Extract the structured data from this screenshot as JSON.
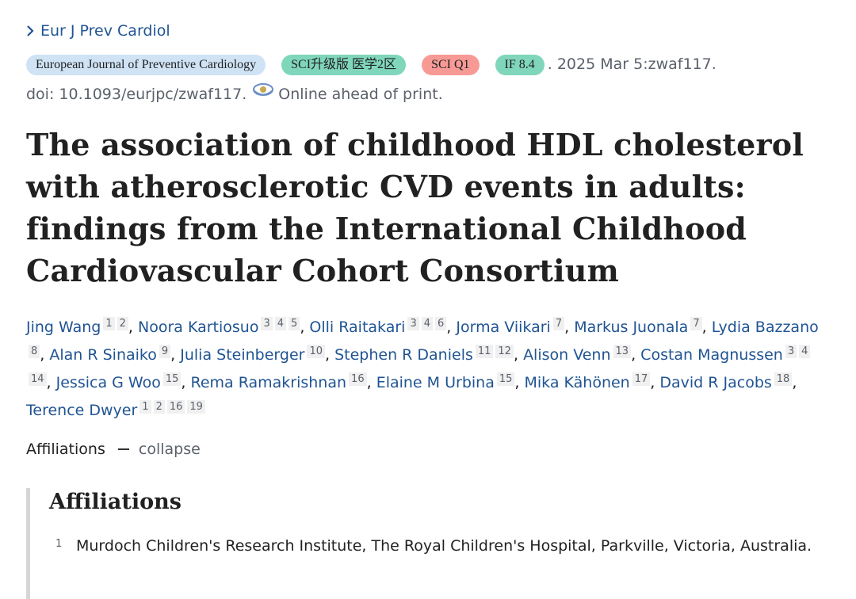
{
  "journal_link": "Eur J Prev Cardiol",
  "citation": {
    "journal_badge": "European Journal of Preventive Cardiology",
    "sci_badge": "SCI升级版 医学2区",
    "q1_badge": "SCI Q1",
    "if_badge": "IF 8.4",
    "date_text": ". 2025 Mar 5:zwaf117.",
    "doi_text": "doi: 10.1093/eurjpc/zwaf117.",
    "epub_icon": "online-ahead-icon",
    "epub_text": "Online ahead of print."
  },
  "title": "The association of childhood HDL cholesterol with atherosclerotic CVD events in adults: findings from the International Childhood Cardiovascular Cohort Consortium",
  "authors": [
    {
      "name": "Jing Wang",
      "affs": [
        "1",
        "2"
      ]
    },
    {
      "name": "Noora Kartiosuo",
      "affs": [
        "3",
        "4",
        "5"
      ]
    },
    {
      "name": "Olli Raitakari",
      "affs": [
        "3",
        "4",
        "6"
      ]
    },
    {
      "name": "Jorma Viikari",
      "affs": [
        "7"
      ]
    },
    {
      "name": "Markus Juonala",
      "affs": [
        "7"
      ]
    },
    {
      "name": "Lydia Bazzano",
      "affs": [
        "8"
      ]
    },
    {
      "name": "Alan R Sinaiko",
      "affs": [
        "9"
      ]
    },
    {
      "name": "Julia Steinberger",
      "affs": [
        "10"
      ]
    },
    {
      "name": "Stephen R Daniels",
      "affs": [
        "11",
        "12"
      ]
    },
    {
      "name": "Alison Venn",
      "affs": [
        "13"
      ]
    },
    {
      "name": "Costan Magnussen",
      "affs": [
        "3",
        "4",
        "14"
      ]
    },
    {
      "name": "Jessica G Woo",
      "affs": [
        "15"
      ]
    },
    {
      "name": "Rema Ramakrishnan",
      "affs": [
        "16"
      ]
    },
    {
      "name": "Elaine M Urbina",
      "affs": [
        "15"
      ]
    },
    {
      "name": "Mika Kähönen",
      "affs": [
        "17"
      ]
    },
    {
      "name": "David R Jacobs",
      "affs": [
        "18"
      ]
    },
    {
      "name": "Terence Dwyer",
      "affs": [
        "1",
        "2",
        "16",
        "19"
      ]
    }
  ],
  "affiliations_toggle": {
    "label": "Affiliations",
    "action": "collapse"
  },
  "affiliations": {
    "heading": "Affiliations",
    "items": [
      {
        "num": "1",
        "text": "Murdoch Children's Research Institute, The Royal Children's Hospital, Parkville, Victoria, Australia."
      }
    ]
  }
}
